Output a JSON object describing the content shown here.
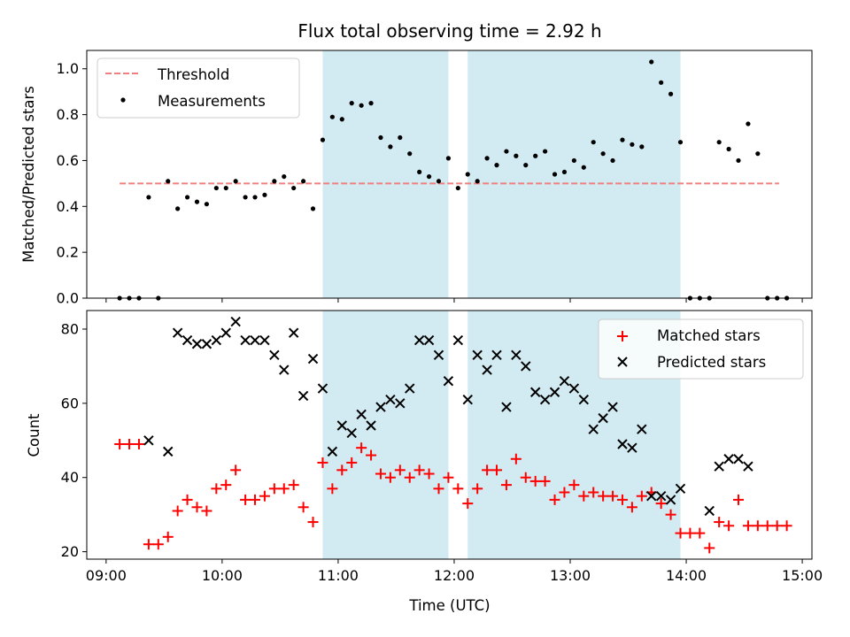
{
  "chart_data": {
    "title": "Flux total observing time = 2.92 h",
    "x_label": "Time (UTC)",
    "x_unit": "hours UTC",
    "x_range": [
      "08:50",
      "15:05"
    ],
    "x_ticks": [
      "09:00",
      "10:00",
      "11:00",
      "12:00",
      "13:00",
      "14:00",
      "15:00"
    ],
    "highlighted_intervals": [
      {
        "start": "10:52",
        "end": "11:57"
      },
      {
        "start": "12:07",
        "end": "13:57"
      }
    ],
    "colors": {
      "shade": "#add8e6",
      "threshold": "#f08080",
      "measurements": "#000000",
      "matched": "#ff0000",
      "predicted": "#000000"
    },
    "panels": [
      {
        "type": "scatter",
        "y_label": "Matched/Predicted stars",
        "y_range": [
          0,
          1.08
        ],
        "y_ticks": [
          "0.0",
          "0.2",
          "0.4",
          "0.6",
          "0.8",
          "1.0"
        ],
        "legend_position": "upper left",
        "threshold": {
          "name": "Threshold",
          "value": 0.5,
          "x_range": [
            "09:07",
            "14:48"
          ]
        },
        "series": [
          {
            "name": "Measurements",
            "marker": "dot",
            "points": [
              [
                "09:07",
                0.0
              ],
              [
                "09:12",
                0.0
              ],
              [
                "09:17",
                0.0
              ],
              [
                "09:22",
                0.44
              ],
              [
                "09:27",
                0.0
              ],
              [
                "09:32",
                0.51
              ],
              [
                "09:37",
                0.39
              ],
              [
                "09:42",
                0.44
              ],
              [
                "09:47",
                0.42
              ],
              [
                "09:52",
                0.41
              ],
              [
                "09:57",
                0.48
              ],
              [
                "10:02",
                0.48
              ],
              [
                "10:07",
                0.51
              ],
              [
                "10:12",
                0.44
              ],
              [
                "10:17",
                0.44
              ],
              [
                "10:22",
                0.45
              ],
              [
                "10:27",
                0.51
              ],
              [
                "10:32",
                0.53
              ],
              [
                "10:37",
                0.48
              ],
              [
                "10:42",
                0.51
              ],
              [
                "10:47",
                0.39
              ],
              [
                "10:52",
                0.69
              ],
              [
                "10:57",
                0.79
              ],
              [
                "11:02",
                0.78
              ],
              [
                "11:07",
                0.85
              ],
              [
                "11:12",
                0.84
              ],
              [
                "11:17",
                0.85
              ],
              [
                "11:22",
                0.7
              ],
              [
                "11:27",
                0.66
              ],
              [
                "11:32",
                0.7
              ],
              [
                "11:37",
                0.63
              ],
              [
                "11:42",
                0.55
              ],
              [
                "11:47",
                0.53
              ],
              [
                "11:52",
                0.51
              ],
              [
                "11:57",
                0.61
              ],
              [
                "12:02",
                0.48
              ],
              [
                "12:07",
                0.54
              ],
              [
                "12:12",
                0.51
              ],
              [
                "12:17",
                0.61
              ],
              [
                "12:22",
                0.58
              ],
              [
                "12:27",
                0.64
              ],
              [
                "12:32",
                0.62
              ],
              [
                "12:37",
                0.58
              ],
              [
                "12:42",
                0.62
              ],
              [
                "12:47",
                0.64
              ],
              [
                "12:52",
                0.54
              ],
              [
                "12:57",
                0.55
              ],
              [
                "13:02",
                0.6
              ],
              [
                "13:07",
                0.57
              ],
              [
                "13:12",
                0.68
              ],
              [
                "13:17",
                0.63
              ],
              [
                "13:22",
                0.6
              ],
              [
                "13:27",
                0.69
              ],
              [
                "13:32",
                0.67
              ],
              [
                "13:37",
                0.66
              ],
              [
                "13:42",
                1.03
              ],
              [
                "13:47",
                0.94
              ],
              [
                "13:52",
                0.89
              ],
              [
                "13:57",
                0.68
              ],
              [
                "14:02",
                0.0
              ],
              [
                "14:07",
                0.0
              ],
              [
                "14:12",
                0.0
              ],
              [
                "14:17",
                0.68
              ],
              [
                "14:22",
                0.65
              ],
              [
                "14:27",
                0.6
              ],
              [
                "14:32",
                0.76
              ],
              [
                "14:37",
                0.63
              ],
              [
                "14:42",
                0.0
              ],
              [
                "14:47",
                0.0
              ],
              [
                "14:52",
                0.0
              ]
            ]
          }
        ]
      },
      {
        "type": "scatter",
        "y_label": "Count",
        "y_range": [
          18,
          85
        ],
        "y_ticks": [
          "20",
          "40",
          "60",
          "80"
        ],
        "legend_position": "upper right",
        "series": [
          {
            "name": "Matched stars",
            "marker": "plus",
            "points": [
              [
                "09:07",
                49
              ],
              [
                "09:12",
                49
              ],
              [
                "09:17",
                49
              ],
              [
                "09:22",
                22
              ],
              [
                "09:27",
                22
              ],
              [
                "09:32",
                24
              ],
              [
                "09:37",
                31
              ],
              [
                "09:42",
                34
              ],
              [
                "09:47",
                32
              ],
              [
                "09:52",
                31
              ],
              [
                "09:57",
                37
              ],
              [
                "10:02",
                38
              ],
              [
                "10:07",
                42
              ],
              [
                "10:12",
                34
              ],
              [
                "10:17",
                34
              ],
              [
                "10:22",
                35
              ],
              [
                "10:27",
                37
              ],
              [
                "10:32",
                37
              ],
              [
                "10:37",
                38
              ],
              [
                "10:42",
                32
              ],
              [
                "10:47",
                28
              ],
              [
                "10:52",
                44
              ],
              [
                "10:57",
                37
              ],
              [
                "11:02",
                42
              ],
              [
                "11:07",
                44
              ],
              [
                "11:12",
                48
              ],
              [
                "11:17",
                46
              ],
              [
                "11:22",
                41
              ],
              [
                "11:27",
                40
              ],
              [
                "11:32",
                42
              ],
              [
                "11:37",
                40
              ],
              [
                "11:42",
                42
              ],
              [
                "11:47",
                41
              ],
              [
                "11:52",
                37
              ],
              [
                "11:57",
                40
              ],
              [
                "12:02",
                37
              ],
              [
                "12:07",
                33
              ],
              [
                "12:12",
                37
              ],
              [
                "12:17",
                42
              ],
              [
                "12:22",
                42
              ],
              [
                "12:27",
                38
              ],
              [
                "12:32",
                45
              ],
              [
                "12:37",
                40
              ],
              [
                "12:42",
                39
              ],
              [
                "12:47",
                39
              ],
              [
                "12:52",
                34
              ],
              [
                "12:57",
                36
              ],
              [
                "13:02",
                38
              ],
              [
                "13:07",
                35
              ],
              [
                "13:12",
                36
              ],
              [
                "13:17",
                35
              ],
              [
                "13:22",
                35
              ],
              [
                "13:27",
                34
              ],
              [
                "13:32",
                32
              ],
              [
                "13:37",
                35
              ],
              [
                "13:42",
                36
              ],
              [
                "13:47",
                33
              ],
              [
                "13:52",
                30
              ],
              [
                "13:57",
                25
              ],
              [
                "14:02",
                25
              ],
              [
                "14:07",
                25
              ],
              [
                "14:12",
                21
              ],
              [
                "14:17",
                28
              ],
              [
                "14:22",
                27
              ],
              [
                "14:27",
                34
              ],
              [
                "14:32",
                27
              ],
              [
                "14:37",
                27
              ],
              [
                "14:42",
                27
              ],
              [
                "14:47",
                27
              ],
              [
                "14:52",
                27
              ]
            ]
          },
          {
            "name": "Predicted stars",
            "marker": "x",
            "points": [
              [
                "09:22",
                50
              ],
              [
                "09:32",
                47
              ],
              [
                "09:37",
                79
              ],
              [
                "09:42",
                77
              ],
              [
                "09:47",
                76
              ],
              [
                "09:52",
                76
              ],
              [
                "09:57",
                77
              ],
              [
                "10:02",
                79
              ],
              [
                "10:07",
                82
              ],
              [
                "10:12",
                77
              ],
              [
                "10:17",
                77
              ],
              [
                "10:22",
                77
              ],
              [
                "10:27",
                73
              ],
              [
                "10:32",
                69
              ],
              [
                "10:37",
                79
              ],
              [
                "10:42",
                62
              ],
              [
                "10:47",
                72
              ],
              [
                "10:52",
                64
              ],
              [
                "10:57",
                47
              ],
              [
                "11:02",
                54
              ],
              [
                "11:07",
                52
              ],
              [
                "11:12",
                57
              ],
              [
                "11:17",
                54
              ],
              [
                "11:22",
                59
              ],
              [
                "11:27",
                61
              ],
              [
                "11:32",
                60
              ],
              [
                "11:37",
                64
              ],
              [
                "11:42",
                77
              ],
              [
                "11:47",
                77
              ],
              [
                "11:52",
                73
              ],
              [
                "11:57",
                66
              ],
              [
                "12:02",
                77
              ],
              [
                "12:07",
                61
              ],
              [
                "12:12",
                73
              ],
              [
                "12:17",
                69
              ],
              [
                "12:22",
                73
              ],
              [
                "12:27",
                59
              ],
              [
                "12:32",
                73
              ],
              [
                "12:37",
                70
              ],
              [
                "12:42",
                63
              ],
              [
                "12:47",
                61
              ],
              [
                "12:52",
                63
              ],
              [
                "12:57",
                66
              ],
              [
                "13:02",
                64
              ],
              [
                "13:07",
                61
              ],
              [
                "13:12",
                53
              ],
              [
                "13:17",
                56
              ],
              [
                "13:22",
                59
              ],
              [
                "13:27",
                49
              ],
              [
                "13:32",
                48
              ],
              [
                "13:37",
                53
              ],
              [
                "13:42",
                35
              ],
              [
                "13:47",
                35
              ],
              [
                "13:52",
                34
              ],
              [
                "13:57",
                37
              ],
              [
                "14:12",
                31
              ],
              [
                "14:17",
                43
              ],
              [
                "14:22",
                45
              ],
              [
                "14:27",
                45
              ],
              [
                "14:32",
                43
              ]
            ]
          }
        ]
      }
    ]
  }
}
